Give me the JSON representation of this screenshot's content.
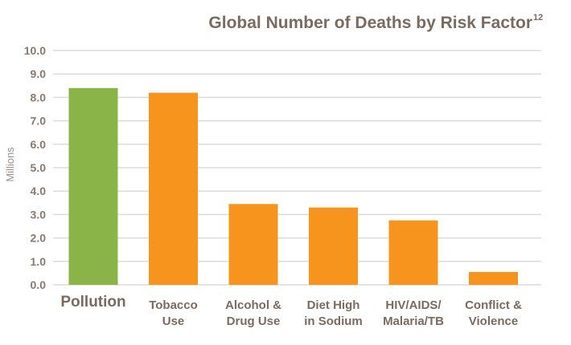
{
  "chart_data": {
    "type": "bar",
    "title": "Global Number of Deaths by Risk Factor",
    "title_superscript": "12",
    "ylabel": "Millions",
    "xlabel": "",
    "ylim": [
      0,
      10
    ],
    "yticks": [
      "0.0",
      "1.0",
      "2.0",
      "3.0",
      "4.0",
      "5.0",
      "6.0",
      "7.0",
      "8.0",
      "9.0",
      "10.0"
    ],
    "grid": true,
    "categories": [
      [
        "Pollution"
      ],
      [
        "Tobacco",
        "Use"
      ],
      [
        "Alcohol &",
        "Drug Use"
      ],
      [
        "Diet High",
        "in Sodium"
      ],
      [
        "HIV/AIDS/",
        "Malaria/TB"
      ],
      [
        "Conflict &",
        "Violence"
      ]
    ],
    "values": [
      8.4,
      8.2,
      3.45,
      3.3,
      2.75,
      0.55
    ],
    "colors": [
      "#8ab348",
      "#f7941d",
      "#f7941d",
      "#f7941d",
      "#f7941d",
      "#f7941d"
    ]
  }
}
